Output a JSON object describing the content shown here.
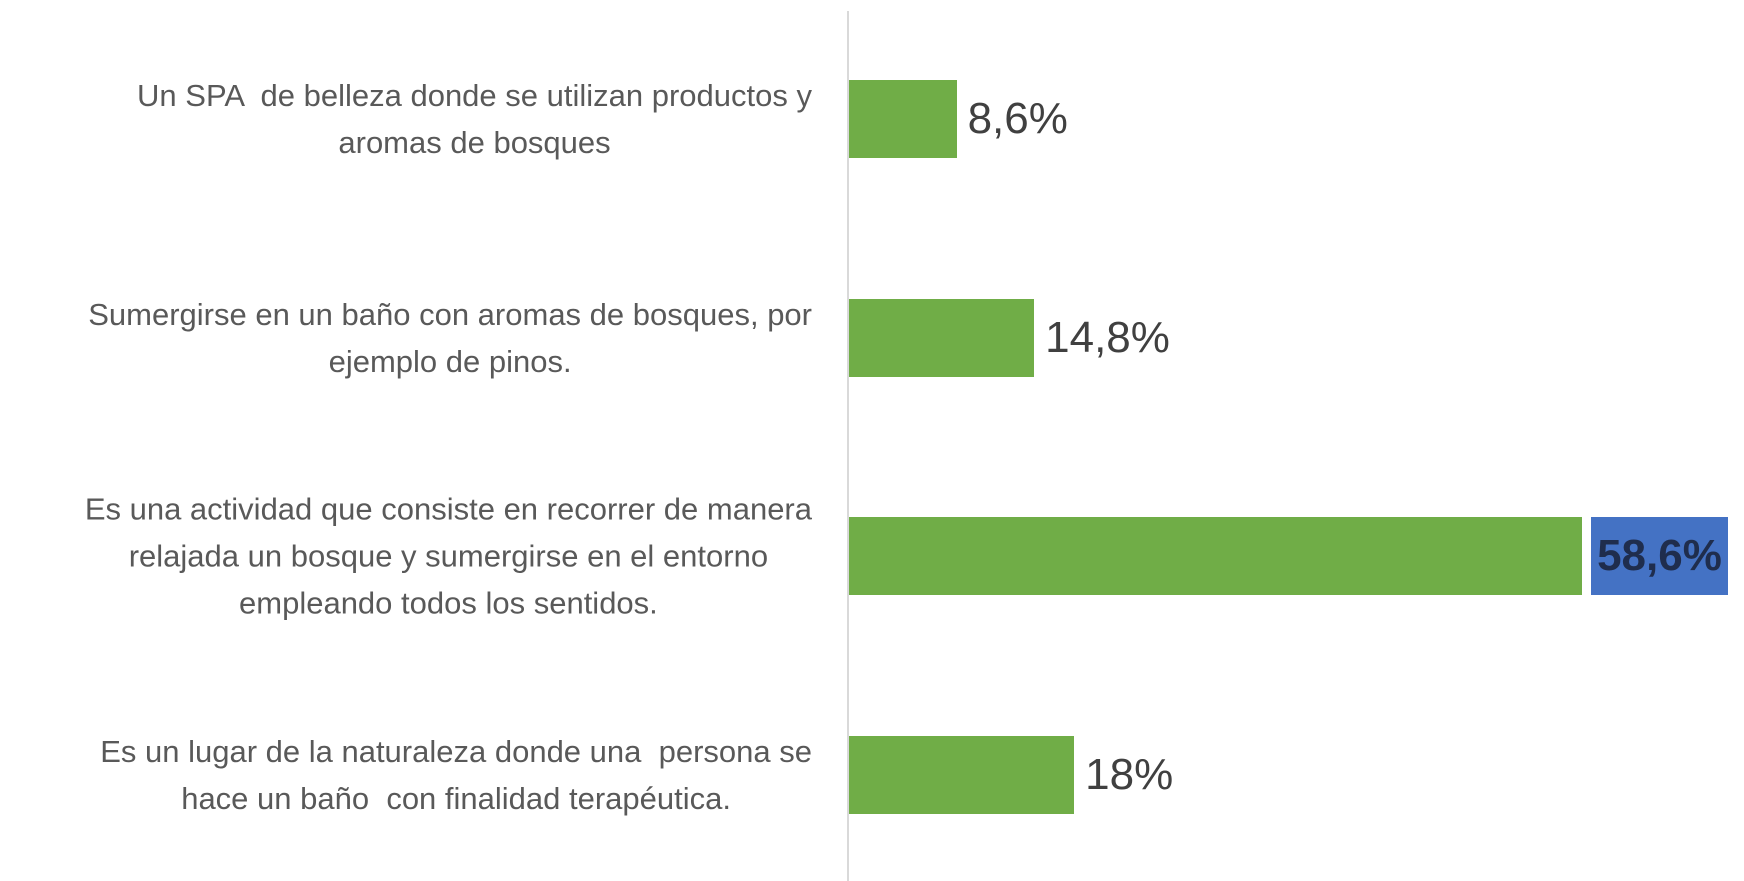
{
  "chart_data": {
    "type": "barh",
    "categories": [
      "Un SPA  de belleza donde se utilizan productos y\naromas de bosques",
      "Sumergirse en un baño con aromas de bosques, por\nejemplo de pinos.",
      "Es una actividad que consiste en recorrer de manera\nrelajada un bosque y sumergirse en el entorno\nempleando todos los sentidos.",
      "Es un lugar de la naturaleza donde una  persona se\nhace un baño  con finalidad terapéutica."
    ],
    "values": [
      8.6,
      14.8,
      58.6,
      18
    ],
    "value_labels": [
      "8,6%",
      "14,8%",
      "58,6%",
      "18%"
    ],
    "color": "#70ad47",
    "label_highlight": {
      "index": 2,
      "color": "#4472c4"
    }
  }
}
